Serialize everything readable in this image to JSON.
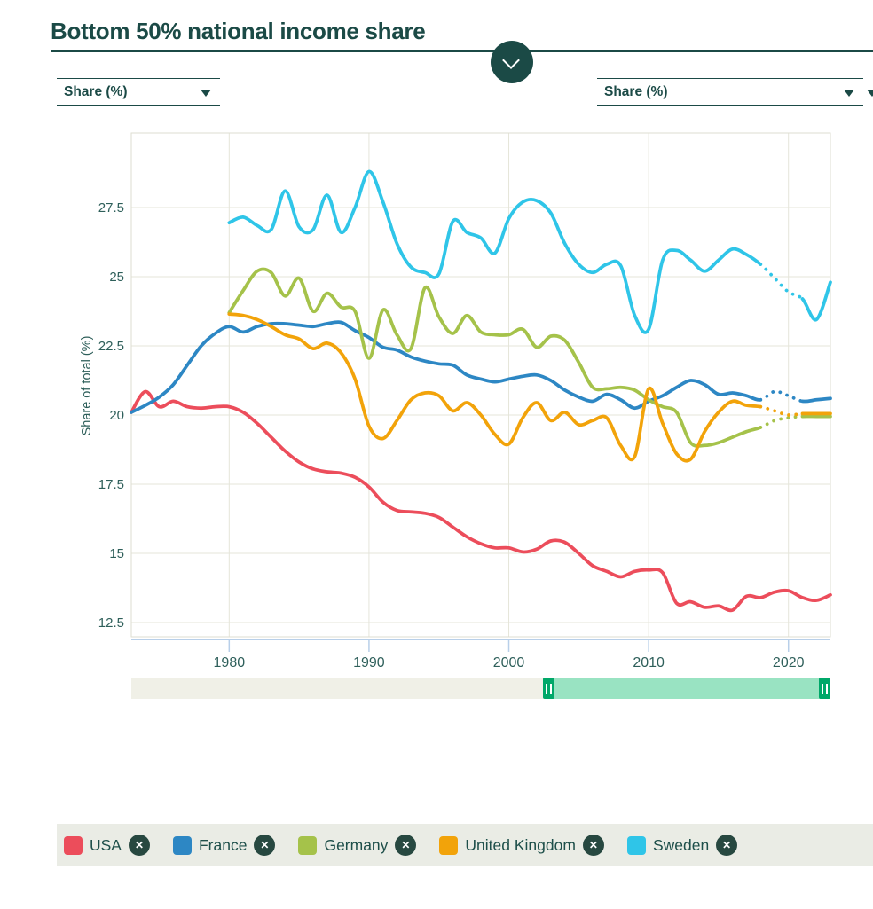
{
  "header": {
    "title": "Bottom 50% national income share"
  },
  "controls": {
    "left_dropdown": {
      "value": "Share (%)"
    },
    "right_dropdown": {
      "value": "Share (%)"
    }
  },
  "chart_data": {
    "type": "line",
    "title": "Bottom 50% national income share",
    "ylabel": "Share of total (%)",
    "x_range": [
      1973,
      2023
    ],
    "y_range": [
      12.1,
      30.3
    ],
    "x_ticks": [
      "1980",
      "1990",
      "2000",
      "2010",
      "2020"
    ],
    "y_ticks": [
      "27.5",
      "25",
      "22.5",
      "20",
      "17.5",
      "15",
      "12.5"
    ],
    "grid": true,
    "legend_position": "bottom",
    "dotted_note": "dotted segments are estimates for ~2018-2021",
    "series": [
      {
        "name": "USA",
        "color": "#ec4d5b",
        "start_year": 1973,
        "dotted": null,
        "values": [
          20.1,
          20.85,
          20.3,
          20.5,
          20.3,
          20.25,
          20.3,
          20.3,
          20.1,
          19.7,
          19.2,
          18.7,
          18.3,
          18.05,
          17.95,
          17.9,
          17.75,
          17.4,
          16.85,
          16.55,
          16.5,
          16.45,
          16.3,
          15.95,
          15.6,
          15.35,
          15.2,
          15.2,
          15.05,
          15.15,
          15.45,
          15.4,
          15.0,
          14.55,
          14.35,
          14.15,
          14.35,
          14.4,
          14.3,
          13.2,
          13.25,
          13.05,
          13.1,
          12.95,
          13.45,
          13.4,
          13.6,
          13.65,
          13.4,
          13.3,
          13.5
        ]
      },
      {
        "name": "France",
        "color": "#2d87c4",
        "start_year": 1973,
        "dotted": [
          2018,
          2021
        ],
        "values": [
          20.1,
          20.35,
          20.65,
          21.1,
          21.8,
          22.5,
          22.95,
          23.2,
          23.0,
          23.2,
          23.3,
          23.3,
          23.25,
          23.2,
          23.3,
          23.35,
          23.05,
          22.8,
          22.45,
          22.35,
          22.1,
          21.95,
          21.85,
          21.8,
          21.45,
          21.3,
          21.2,
          21.3,
          21.4,
          21.45,
          21.25,
          20.9,
          20.65,
          20.5,
          20.75,
          20.55,
          20.25,
          20.5,
          20.7,
          21.0,
          21.25,
          21.1,
          20.75,
          20.8,
          20.7,
          20.55,
          20.85,
          20.7,
          20.5,
          20.55,
          20.6
        ]
      },
      {
        "name": "Germany",
        "color": "#a5c24a",
        "start_year": 1980,
        "dotted": [
          2018,
          2021
        ],
        "values": [
          23.7,
          24.5,
          25.2,
          25.15,
          24.3,
          24.95,
          23.75,
          24.4,
          23.9,
          23.75,
          22.05,
          23.8,
          22.9,
          22.4,
          24.6,
          23.55,
          22.95,
          23.6,
          23.0,
          22.9,
          22.9,
          23.1,
          22.45,
          22.85,
          22.7,
          21.9,
          21.0,
          20.95,
          21.0,
          20.9,
          20.55,
          20.3,
          20.1,
          19.0,
          18.9,
          19.0,
          19.2,
          19.4,
          19.55,
          19.8,
          19.9,
          19.95,
          19.95,
          19.95
        ]
      },
      {
        "name": "United Kingdom",
        "color": "#f2a30a",
        "start_year": 1980,
        "dotted": [
          2018,
          2021
        ],
        "values": [
          23.65,
          23.6,
          23.45,
          23.2,
          22.9,
          22.75,
          22.4,
          22.6,
          22.25,
          21.3,
          19.6,
          19.15,
          19.8,
          20.55,
          20.8,
          20.7,
          20.15,
          20.45,
          20.0,
          19.3,
          18.95,
          19.9,
          20.45,
          19.8,
          20.1,
          19.65,
          19.8,
          19.9,
          18.9,
          18.5,
          20.95,
          19.7,
          18.6,
          18.4,
          19.4,
          20.1,
          20.5,
          20.35,
          20.3,
          20.15,
          20.0,
          20.05,
          20.05,
          20.05
        ]
      },
      {
        "name": "Sweden",
        "color": "#2fc5e8",
        "start_year": 1980,
        "dotted": [
          2018,
          2021
        ],
        "values": [
          26.95,
          27.15,
          26.85,
          26.7,
          28.1,
          26.8,
          26.7,
          27.95,
          26.6,
          27.5,
          28.8,
          27.7,
          26.2,
          25.35,
          25.15,
          25.1,
          27.0,
          26.6,
          26.4,
          25.85,
          27.1,
          27.7,
          27.75,
          27.3,
          26.2,
          25.45,
          25.15,
          25.45,
          25.4,
          23.6,
          23.1,
          25.6,
          25.95,
          25.6,
          25.2,
          25.6,
          26.0,
          25.8,
          25.45,
          24.95,
          24.45,
          24.2,
          23.45,
          24.8
        ]
      }
    ]
  },
  "legend": {
    "close_glyph": "✕",
    "items": [
      {
        "label": "USA",
        "color": "#ec4d5b"
      },
      {
        "label": "France",
        "color": "#2d87c4"
      },
      {
        "label": "Germany",
        "color": "#a5c24a"
      },
      {
        "label": "United Kingdom",
        "color": "#f2a30a"
      },
      {
        "label": "Sweden",
        "color": "#2fc5e8"
      }
    ]
  }
}
